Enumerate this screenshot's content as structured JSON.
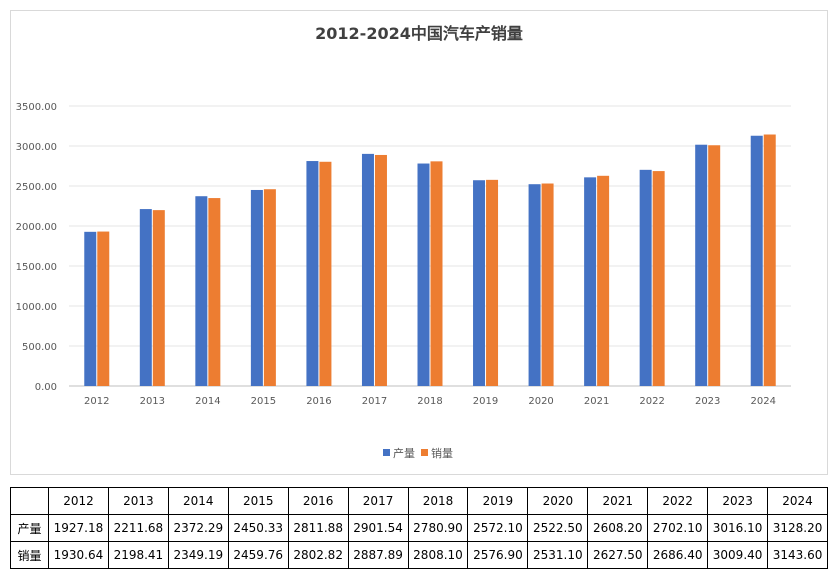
{
  "chart_data": {
    "type": "bar",
    "title": "2012-2024中国汽车产销量",
    "categories": [
      "2012",
      "2013",
      "2014",
      "2015",
      "2016",
      "2017",
      "2018",
      "2019",
      "2020",
      "2021",
      "2022",
      "2023",
      "2024"
    ],
    "series": [
      {
        "name": "产量",
        "color": "#4472c4",
        "values": [
          1927.18,
          2211.68,
          2372.29,
          2450.33,
          2811.88,
          2901.54,
          2780.9,
          2572.1,
          2522.5,
          2608.2,
          2702.1,
          3016.1,
          3128.2
        ]
      },
      {
        "name": "销量",
        "color": "#ed7d31",
        "values": [
          1930.64,
          2198.41,
          2349.19,
          2459.76,
          2802.82,
          2887.89,
          2808.1,
          2576.9,
          2531.1,
          2627.5,
          2686.4,
          3009.4,
          3143.6
        ]
      }
    ],
    "ylim": [
      0,
      3500
    ],
    "yticks": [
      "0.00",
      "500.00",
      "1000.00",
      "1500.00",
      "2000.00",
      "2500.00",
      "3000.00",
      "3500.00"
    ],
    "grid": true,
    "legend": "bottom"
  },
  "table": {
    "years": [
      "2012",
      "2013",
      "2014",
      "2015",
      "2016",
      "2017",
      "2018",
      "2019",
      "2020",
      "2021",
      "2022",
      "2023",
      "2024"
    ],
    "rows": [
      {
        "label": "产量",
        "values": [
          "1927.18",
          "2211.68",
          "2372.29",
          "2450.33",
          "2811.88",
          "2901.54",
          "2780.90",
          "2572.10",
          "2522.50",
          "2608.20",
          "2702.10",
          "3016.10",
          "3128.20"
        ]
      },
      {
        "label": "销量",
        "values": [
          "1930.64",
          "2198.41",
          "2349.19",
          "2459.76",
          "2802.82",
          "2887.89",
          "2808.10",
          "2576.90",
          "2531.10",
          "2627.50",
          "2686.40",
          "3009.40",
          "3143.60"
        ]
      }
    ]
  }
}
